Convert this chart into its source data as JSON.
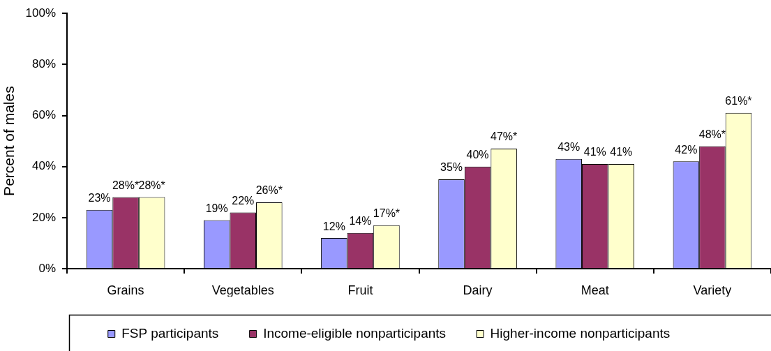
{
  "chart_data": {
    "type": "bar",
    "categories": [
      "Grains",
      "Vegetables",
      "Fruit",
      "Dairy",
      "Meat",
      "Variety"
    ],
    "series": [
      {
        "name": "FSP participants",
        "color": "#9999ff",
        "values": [
          23,
          19,
          12,
          35,
          43,
          42
        ],
        "value_labels": [
          "23%",
          "19%",
          "12%",
          "35%",
          "43%",
          "42%"
        ]
      },
      {
        "name": "Income-eligible nonparticipants",
        "color": "#993366",
        "values": [
          28,
          22,
          14,
          40,
          41,
          48
        ],
        "value_labels": [
          "28%*",
          "22%",
          "14%",
          "40%",
          "41%",
          "48%*"
        ]
      },
      {
        "name": "Higher-income nonparticipants",
        "color": "#ffffcc",
        "values": [
          28,
          26,
          17,
          47,
          41,
          61
        ],
        "value_labels": [
          "28%*",
          "26%*",
          "17%*",
          "47%*",
          "41%",
          "61%*"
        ]
      }
    ],
    "ylabel": "Percent of males",
    "ylim": [
      0,
      100
    ],
    "yticks": [
      {
        "value": 0,
        "label": "0%"
      },
      {
        "value": 20,
        "label": "20%"
      },
      {
        "value": 40,
        "label": "40%"
      },
      {
        "value": 60,
        "label": "60%"
      },
      {
        "value": 80,
        "label": "80%"
      },
      {
        "value": 100,
        "label": "100%"
      }
    ],
    "legend": "bottom"
  }
}
